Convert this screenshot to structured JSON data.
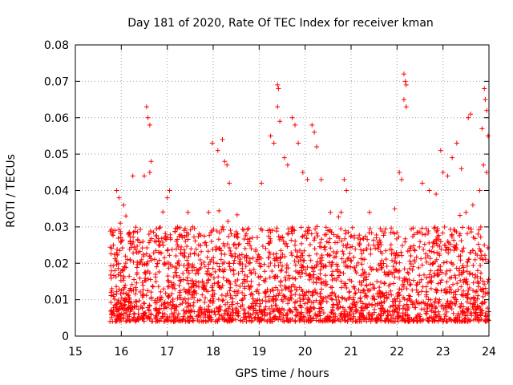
{
  "chart_data": {
    "type": "scatter",
    "title": "Day 181 of 2020, Rate Of TEC Index for receiver kman",
    "xlabel": "GPS time / hours",
    "ylabel": "ROTI / TECUs",
    "xlim": [
      15,
      24
    ],
    "ylim": [
      0,
      0.08
    ],
    "x_ticks": [
      "15",
      "16",
      "17",
      "18",
      "19",
      "20",
      "21",
      "22",
      "23",
      "24"
    ],
    "y_ticks": [
      "0",
      "0.01",
      "0.02",
      "0.03",
      "0.04",
      "0.05",
      "0.06",
      "0.07",
      "0.08"
    ],
    "grid": true,
    "marker": "+",
    "color": "#ff0000",
    "series": [
      {
        "name": "ROTI",
        "x_range": [
          15.75,
          24.0
        ],
        "typical_range": [
          0.004,
          0.03
        ],
        "points": [
          [
            15.8,
            0.028
          ],
          [
            15.9,
            0.04
          ],
          [
            15.95,
            0.038
          ],
          [
            16.05,
            0.036
          ],
          [
            16.1,
            0.033
          ],
          [
            16.25,
            0.044
          ],
          [
            16.5,
            0.044
          ],
          [
            16.55,
            0.063
          ],
          [
            16.58,
            0.06
          ],
          [
            16.62,
            0.058
          ],
          [
            16.65,
            0.048
          ],
          [
            16.62,
            0.045
          ],
          [
            17.0,
            0.038
          ],
          [
            17.05,
            0.04
          ],
          [
            17.45,
            0.034
          ],
          [
            17.55,
            0.03
          ],
          [
            17.9,
            0.034
          ],
          [
            17.98,
            0.053
          ],
          [
            18.1,
            0.051
          ],
          [
            18.2,
            0.054
          ],
          [
            18.25,
            0.048
          ],
          [
            18.3,
            0.047
          ],
          [
            18.35,
            0.042
          ],
          [
            19.05,
            0.042
          ],
          [
            19.25,
            0.055
          ],
          [
            19.32,
            0.053
          ],
          [
            19.4,
            0.069
          ],
          [
            19.42,
            0.068
          ],
          [
            19.4,
            0.063
          ],
          [
            19.45,
            0.059
          ],
          [
            19.55,
            0.049
          ],
          [
            19.62,
            0.047
          ],
          [
            19.72,
            0.06
          ],
          [
            19.78,
            0.058
          ],
          [
            19.85,
            0.053
          ],
          [
            19.95,
            0.045
          ],
          [
            20.05,
            0.043
          ],
          [
            20.15,
            0.058
          ],
          [
            20.2,
            0.056
          ],
          [
            20.25,
            0.052
          ],
          [
            20.35,
            0.043
          ],
          [
            20.55,
            0.034
          ],
          [
            20.85,
            0.043
          ],
          [
            20.9,
            0.04
          ],
          [
            21.4,
            0.034
          ],
          [
            21.55,
            0.027
          ],
          [
            21.95,
            0.035
          ],
          [
            22.05,
            0.045
          ],
          [
            22.1,
            0.043
          ],
          [
            22.15,
            0.072
          ],
          [
            22.18,
            0.07
          ],
          [
            22.2,
            0.069
          ],
          [
            22.15,
            0.065
          ],
          [
            22.2,
            0.063
          ],
          [
            22.55,
            0.042
          ],
          [
            22.7,
            0.04
          ],
          [
            22.85,
            0.039
          ],
          [
            22.95,
            0.051
          ],
          [
            23.0,
            0.045
          ],
          [
            23.1,
            0.044
          ],
          [
            23.2,
            0.049
          ],
          [
            23.3,
            0.053
          ],
          [
            23.4,
            0.046
          ],
          [
            23.55,
            0.06
          ],
          [
            23.6,
            0.061
          ],
          [
            23.5,
            0.034
          ],
          [
            23.65,
            0.036
          ],
          [
            23.8,
            0.04
          ],
          [
            23.85,
            0.057
          ],
          [
            23.9,
            0.068
          ],
          [
            23.92,
            0.065
          ],
          [
            23.95,
            0.062
          ],
          [
            23.88,
            0.047
          ],
          [
            23.98,
            0.055
          ],
          [
            23.95,
            0.045
          ]
        ]
      }
    ]
  }
}
